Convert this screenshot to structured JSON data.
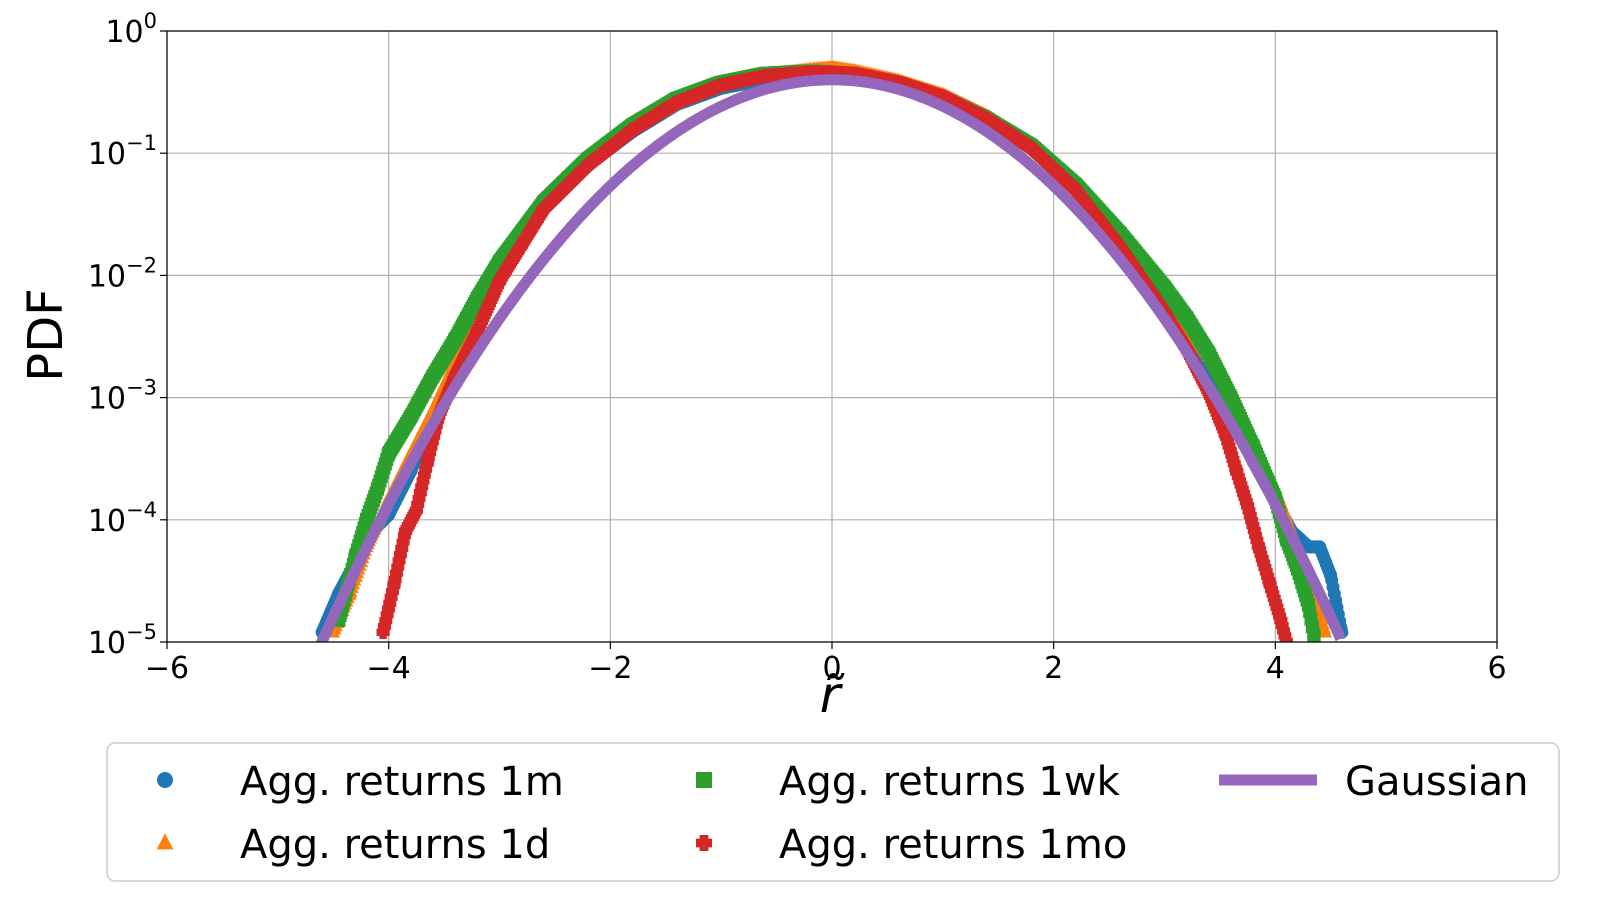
{
  "chart_data": {
    "type": "scatter",
    "title": "",
    "xlabel": "r̃",
    "ylabel": "PDF",
    "xlim": [
      -6,
      6
    ],
    "ylim": [
      1e-05,
      1
    ],
    "yscale": "log",
    "grid": true,
    "legend_position": "below",
    "xticks": [
      {
        "value": -6,
        "label": "−6"
      },
      {
        "value": -4,
        "label": "−4"
      },
      {
        "value": -2,
        "label": "−2"
      },
      {
        "value": 0,
        "label": "0"
      },
      {
        "value": 2,
        "label": "2"
      },
      {
        "value": 4,
        "label": "4"
      },
      {
        "value": 6,
        "label": "6"
      }
    ],
    "yticks": [
      {
        "value": 1e-05,
        "base": "10",
        "exp": "−5"
      },
      {
        "value": 0.0001,
        "base": "10",
        "exp": "−4"
      },
      {
        "value": 0.001,
        "base": "10",
        "exp": "−3"
      },
      {
        "value": 0.01,
        "base": "10",
        "exp": "−2"
      },
      {
        "value": 0.1,
        "base": "10",
        "exp": "−1"
      },
      {
        "value": 1,
        "base": "10",
        "exp": "0"
      }
    ],
    "series": [
      {
        "name": "Agg. returns 1m",
        "marker": "circle",
        "color": "#1f77b4",
        "x": [
          -4.6,
          -4.45,
          -4.3,
          -4.15,
          -4.0,
          -3.8,
          -3.6,
          -3.4,
          -3.2,
          -3.0,
          -2.6,
          -2.2,
          -1.8,
          -1.4,
          -1.0,
          -0.6,
          -0.2,
          0.0,
          0.2,
          0.6,
          1.0,
          1.4,
          1.8,
          2.2,
          2.6,
          3.0,
          3.2,
          3.4,
          3.6,
          3.8,
          4.0,
          4.15,
          4.3,
          4.4,
          4.5,
          4.6
        ],
        "y": [
          1.2e-05,
          2.5e-05,
          4.5e-05,
          8e-05,
          0.00011,
          0.00025,
          0.0007,
          0.0018,
          0.0045,
          0.01,
          0.035,
          0.08,
          0.15,
          0.25,
          0.34,
          0.4,
          0.42,
          0.43,
          0.42,
          0.38,
          0.3,
          0.2,
          0.11,
          0.05,
          0.018,
          0.006,
          0.003,
          0.0015,
          0.0007,
          0.0003,
          0.00014,
          8e-05,
          6e-05,
          6e-05,
          3.5e-05,
          1.2e-05
        ]
      },
      {
        "name": "Agg. returns 1d",
        "marker": "triangle",
        "color": "#ff7f0e",
        "x": [
          -4.5,
          -4.35,
          -4.2,
          -4.0,
          -3.8,
          -3.6,
          -3.4,
          -3.2,
          -3.0,
          -2.6,
          -2.2,
          -1.8,
          -1.4,
          -1.0,
          -0.6,
          -0.2,
          0.0,
          0.2,
          0.6,
          1.0,
          1.4,
          1.8,
          2.2,
          2.6,
          3.0,
          3.2,
          3.4,
          3.6,
          3.8,
          4.0,
          4.2,
          4.35,
          4.45
        ],
        "y": [
          1.2e-05,
          2.5e-05,
          6e-05,
          0.00015,
          0.00035,
          0.0008,
          0.002,
          0.005,
          0.011,
          0.038,
          0.085,
          0.16,
          0.26,
          0.36,
          0.44,
          0.48,
          0.5,
          0.47,
          0.39,
          0.3,
          0.2,
          0.115,
          0.052,
          0.019,
          0.007,
          0.004,
          0.0022,
          0.0011,
          0.00045,
          0.00018,
          6e-05,
          2.5e-05,
          1.2e-05
        ]
      },
      {
        "name": "Agg. returns 1wk",
        "marker": "square",
        "color": "#2ca02c",
        "x": [
          -4.45,
          -4.3,
          -4.2,
          -4.1,
          -4.0,
          -3.8,
          -3.6,
          -3.4,
          -3.2,
          -3.0,
          -2.6,
          -2.2,
          -1.8,
          -1.4,
          -1.0,
          -0.6,
          -0.2,
          0.0,
          0.2,
          0.6,
          1.0,
          1.4,
          1.8,
          2.2,
          2.6,
          3.0,
          3.2,
          3.4,
          3.6,
          3.8,
          4.0,
          4.1,
          4.2,
          4.3,
          4.35
        ],
        "y": [
          1.5e-05,
          5e-05,
          0.0001,
          0.00018,
          0.00035,
          0.0007,
          0.0015,
          0.003,
          0.0065,
          0.013,
          0.04,
          0.09,
          0.17,
          0.28,
          0.38,
          0.45,
          0.47,
          0.46,
          0.44,
          0.37,
          0.28,
          0.19,
          0.115,
          0.055,
          0.022,
          0.008,
          0.0045,
          0.0023,
          0.001,
          0.0004,
          0.00015,
          7e-05,
          4e-05,
          2e-05,
          1.1e-05
        ]
      },
      {
        "name": "Agg. returns 1mo",
        "marker": "plus",
        "color": "#d62728",
        "x": [
          -4.05,
          -3.95,
          -3.85,
          -3.75,
          -3.65,
          -3.55,
          -3.4,
          -3.2,
          -3.0,
          -2.6,
          -2.2,
          -1.8,
          -1.4,
          -1.0,
          -0.6,
          -0.2,
          0.0,
          0.2,
          0.6,
          1.0,
          1.4,
          1.8,
          2.2,
          2.6,
          3.0,
          3.2,
          3.4,
          3.55,
          3.65,
          3.75,
          3.85,
          3.95,
          4.05,
          4.1
        ],
        "y": [
          1.2e-05,
          3e-05,
          8e-05,
          0.00012,
          0.0003,
          0.0007,
          0.0015,
          0.0035,
          0.009,
          0.035,
          0.08,
          0.155,
          0.26,
          0.36,
          0.43,
          0.46,
          0.46,
          0.45,
          0.38,
          0.29,
          0.19,
          0.11,
          0.05,
          0.017,
          0.005,
          0.0025,
          0.0011,
          0.0005,
          0.00025,
          0.00013,
          6e-05,
          3e-05,
          1.5e-05,
          1e-05
        ]
      },
      {
        "name": "Gaussian",
        "marker": "line",
        "color": "#9467bd",
        "function": "normal_pdf",
        "mean": 0,
        "std": 1,
        "x": [
          -4.65,
          -4.2,
          -3.8,
          -3.4,
          -3.0,
          -2.6,
          -2.2,
          -1.8,
          -1.4,
          -1.0,
          -0.6,
          -0.2,
          0.0,
          0.2,
          0.6,
          1.0,
          1.4,
          1.8,
          2.2,
          2.6,
          3.0,
          3.4,
          3.8,
          4.2,
          4.6
        ],
        "y": [
          7.6e-06,
          5.9e-05,
          0.00029,
          0.0012,
          0.0044,
          0.0136,
          0.0355,
          0.079,
          0.15,
          0.242,
          0.333,
          0.391,
          0.399,
          0.391,
          0.333,
          0.242,
          0.15,
          0.079,
          0.0355,
          0.0136,
          0.0044,
          0.0012,
          0.00029,
          5.9e-05,
          1e-05
        ]
      }
    ]
  }
}
